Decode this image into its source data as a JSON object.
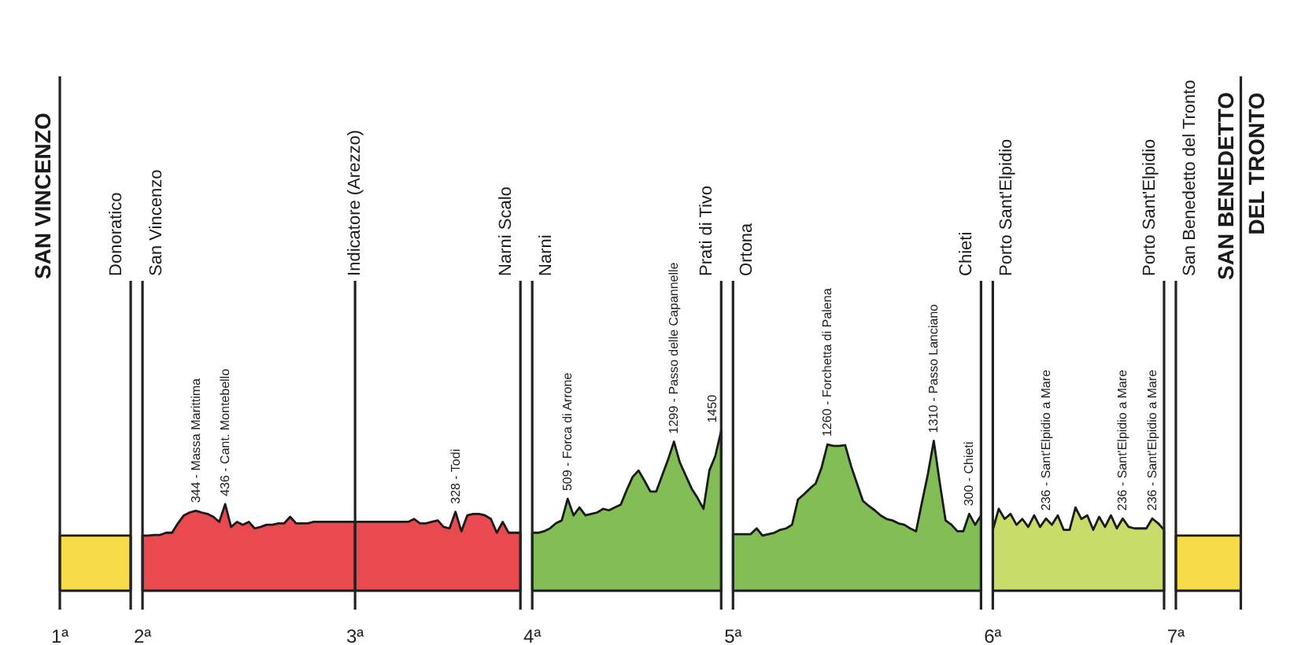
{
  "chart_data": {
    "type": "area",
    "categories": [
      "1ª",
      null,
      null,
      null,
      null,
      null,
      null,
      null,
      null,
      null,
      null,
      null,
      null,
      null,
      "2ª",
      null,
      null,
      null,
      null,
      null,
      null,
      null,
      null,
      null,
      null,
      null,
      null,
      null,
      null,
      null,
      null,
      null,
      null,
      null,
      null,
      null,
      null,
      null,
      null,
      null,
      null,
      null,
      null,
      null,
      null,
      null,
      null,
      null,
      null,
      null,
      "3ª",
      null,
      null,
      null,
      null,
      null,
      null,
      null,
      null,
      null,
      null,
      null,
      null,
      null,
      null,
      null,
      null,
      null,
      null,
      null,
      null,
      null,
      null,
      null,
      null,
      null,
      null,
      null,
      null,
      null,
      "4ª",
      null,
      null,
      null,
      null,
      null,
      null,
      null,
      null,
      null,
      null,
      null,
      null,
      null,
      null,
      null,
      null,
      null,
      null,
      null,
      null,
      null,
      null,
      null,
      null,
      null,
      null,
      null,
      null,
      null,
      null,
      null,
      null,
      null,
      "5ª",
      null,
      null,
      null,
      null,
      null,
      null,
      null,
      null,
      null,
      null,
      null,
      null,
      null,
      null,
      null,
      null,
      null,
      null,
      null,
      null,
      null,
      null,
      null,
      null,
      null,
      null,
      null,
      null,
      null,
      null,
      null,
      null,
      null,
      null,
      null,
      null,
      null,
      null,
      null,
      null,
      null,
      null,
      null,
      "6ª",
      null,
      null,
      null,
      null,
      null,
      null,
      null,
      null,
      null,
      null,
      null,
      null,
      null,
      null,
      null,
      null,
      null,
      null,
      null,
      null,
      null,
      null,
      null,
      null,
      null,
      null,
      null,
      null,
      null,
      null,
      "7ª",
      null,
      null,
      null,
      null,
      null,
      null,
      null,
      null,
      null,
      null,
      null
    ],
    "series": [
      {
        "color": "#f5dc48",
        "values": [
          0,
          0,
          0,
          0,
          0,
          0,
          0,
          0,
          0,
          0,
          0,
          0,
          0,
          null,
          null,
          null,
          null,
          null,
          null,
          null,
          null,
          null,
          null,
          null,
          null,
          null,
          null,
          null,
          null,
          null,
          null,
          null,
          null,
          null,
          null,
          null,
          null,
          null,
          null,
          null,
          null,
          null,
          null,
          null,
          null,
          null,
          null,
          null,
          null,
          null,
          null,
          null,
          null,
          null,
          null,
          null,
          null,
          null,
          null,
          null,
          null,
          null,
          null,
          null,
          null,
          null,
          null,
          null,
          null,
          null,
          null,
          null,
          null,
          null,
          null,
          null,
          null,
          null,
          null,
          null,
          null,
          null,
          null,
          null,
          null,
          null,
          null,
          null,
          null,
          null,
          null,
          null,
          null,
          null,
          null,
          null,
          null,
          null,
          null,
          null,
          null,
          null,
          null,
          null,
          null,
          null,
          null,
          null,
          null,
          null,
          null,
          null,
          null,
          null,
          null,
          null,
          null,
          null,
          null,
          null,
          null,
          null,
          null,
          null,
          null,
          null,
          null,
          null,
          null,
          null,
          null,
          null,
          null,
          null,
          null,
          null,
          null,
          null,
          null,
          null,
          null,
          null,
          null,
          null,
          null,
          null,
          null,
          null,
          null,
          null,
          null,
          null,
          null,
          null,
          null,
          null,
          null,
          null,
          null,
          null,
          null,
          null,
          null,
          null,
          null,
          null,
          null,
          null,
          null,
          null,
          null,
          null,
          null,
          null,
          null,
          null,
          null,
          null,
          null,
          null,
          null,
          null,
          null,
          null,
          null,
          null,
          null,
          null,
          null,
          0,
          0,
          0,
          0,
          0,
          0,
          0,
          0,
          0,
          0,
          0,
          0
        ]
      },
      {
        "color": "#e84a4f",
        "values": [
          null,
          null,
          null,
          null,
          null,
          null,
          null,
          null,
          null,
          null,
          null,
          null,
          null,
          null,
          0,
          0,
          10,
          10,
          40,
          40,
          170,
          280,
          320,
          344,
          320,
          300,
          260,
          190,
          436,
          120,
          190,
          150,
          190,
          100,
          120,
          150,
          150,
          170,
          170,
          260,
          170,
          170,
          170,
          190,
          190,
          190,
          190,
          190,
          190,
          190,
          190,
          null,
          null,
          null,
          null,
          null,
          null,
          null,
          null,
          null,
          null,
          null,
          null,
          null,
          null,
          null,
          null,
          null,
          null,
          null,
          null,
          null,
          null,
          null,
          null,
          null,
          null,
          null,
          null,
          null,
          null,
          null,
          null,
          null,
          null,
          null,
          null,
          null,
          null,
          null,
          null,
          null,
          null,
          null,
          null,
          null,
          null,
          null,
          null,
          null,
          null,
          null,
          null,
          null,
          null,
          null,
          null,
          null,
          null,
          null,
          null,
          null,
          null,
          null,
          null,
          null,
          null,
          null,
          null,
          null,
          null,
          null,
          null,
          null,
          null,
          null,
          null,
          null,
          null,
          null,
          null,
          null,
          null,
          null,
          null,
          null,
          null,
          null,
          null,
          null,
          null,
          null,
          null,
          null,
          null,
          null,
          null,
          null,
          null,
          null,
          null,
          null,
          null,
          null,
          null,
          null,
          null,
          null,
          null,
          null,
          null,
          null,
          null,
          null,
          null,
          null,
          null,
          null,
          null,
          null,
          null,
          null,
          null,
          null,
          null,
          null,
          null,
          null,
          null,
          null,
          null,
          null,
          null,
          null,
          null,
          null,
          null,
          null,
          null,
          null,
          null,
          null,
          null,
          null,
          null,
          null,
          null,
          null,
          null,
          null,
          null
        ],
        "value_labels": [
          null,
          null,
          null,
          null,
          null,
          null,
          null,
          null,
          null,
          null,
          null,
          null,
          null,
          null,
          null,
          null,
          null,
          null,
          null,
          null,
          null,
          null,
          null,
          "344 - Massa Marittima",
          null,
          null,
          null,
          null,
          "436 - Cant. Montebello",
          null,
          null,
          null,
          null,
          null,
          null,
          null,
          null,
          null,
          null,
          null,
          null,
          null,
          null,
          null,
          null,
          null,
          null,
          null,
          null,
          null,
          null,
          null,
          null,
          null,
          null,
          null,
          null,
          null,
          null,
          null,
          null,
          null,
          null,
          null,
          null,
          null,
          null,
          null,
          null,
          null,
          null,
          null,
          null,
          null,
          null,
          null,
          null,
          null,
          null,
          null,
          null,
          null,
          null,
          null,
          null,
          null,
          null,
          null,
          null,
          null,
          null,
          null,
          null,
          null,
          null,
          null,
          null,
          null,
          null,
          null,
          null,
          null,
          null,
          null,
          null,
          null,
          null,
          null,
          null,
          null,
          null,
          null,
          null,
          null,
          null,
          null,
          null,
          null,
          null,
          null,
          null,
          null,
          null,
          null,
          null,
          null,
          null,
          null,
          null,
          null,
          null,
          null,
          null,
          null,
          null,
          null,
          null,
          null,
          null,
          null,
          null,
          null,
          null,
          null,
          null,
          null,
          null,
          null,
          null,
          null,
          null,
          null,
          null,
          null,
          null,
          null,
          null,
          null,
          null,
          null,
          null,
          null,
          null,
          null,
          null,
          null,
          null,
          null,
          null,
          null,
          null,
          null,
          null,
          null,
          null,
          null,
          null,
          null,
          null,
          null,
          null,
          null,
          null,
          null,
          null,
          null,
          null,
          null,
          null,
          null,
          null,
          null,
          null,
          null,
          null,
          null,
          null,
          null,
          null,
          null,
          null
        ]
      },
      {
        "color": "#e84a4f",
        "values": [
          null,
          null,
          null,
          null,
          null,
          null,
          null,
          null,
          null,
          null,
          null,
          null,
          null,
          null,
          null,
          null,
          null,
          null,
          null,
          null,
          null,
          null,
          null,
          null,
          null,
          null,
          null,
          null,
          null,
          null,
          null,
          null,
          null,
          null,
          null,
          null,
          null,
          null,
          null,
          null,
          null,
          null,
          null,
          null,
          null,
          null,
          null,
          null,
          null,
          null,
          190,
          190,
          190,
          190,
          190,
          190,
          190,
          190,
          190,
          190,
          230,
          170,
          170,
          190,
          210,
          120,
          100,
          328,
          60,
          280,
          300,
          300,
          280,
          230,
          40,
          190,
          40,
          40,
          40,
          null,
          null,
          null,
          null,
          null,
          null,
          null,
          null,
          null,
          null,
          null,
          null,
          null,
          null,
          null,
          null,
          null,
          null,
          null,
          null,
          null,
          null,
          null,
          null,
          null,
          null,
          null,
          null,
          null,
          null,
          null,
          null,
          null,
          null,
          null,
          null,
          null,
          null,
          null,
          null,
          null,
          null,
          null,
          null,
          null,
          null,
          null,
          null,
          null,
          null,
          null,
          null,
          null,
          null,
          null,
          null,
          null,
          null,
          null,
          null,
          null,
          null,
          null,
          null,
          null,
          null,
          null,
          null,
          null,
          null,
          null,
          null,
          null,
          null,
          null,
          null,
          null,
          null,
          null,
          null,
          null,
          null,
          null,
          null,
          null,
          null,
          null,
          null,
          null,
          null,
          null,
          null,
          null,
          null,
          null,
          null,
          null,
          null,
          null,
          null,
          null,
          null,
          null,
          null,
          null,
          null,
          null,
          null,
          null,
          null,
          null,
          null,
          null,
          null,
          null,
          null,
          null,
          null,
          null,
          null,
          null,
          null
        ],
        "value_labels": [
          null,
          null,
          null,
          null,
          null,
          null,
          null,
          null,
          null,
          null,
          null,
          null,
          null,
          null,
          null,
          null,
          null,
          null,
          null,
          null,
          null,
          null,
          null,
          null,
          null,
          null,
          null,
          null,
          null,
          null,
          null,
          null,
          null,
          null,
          null,
          null,
          null,
          null,
          null,
          null,
          null,
          null,
          null,
          null,
          null,
          null,
          null,
          null,
          null,
          null,
          null,
          null,
          null,
          null,
          null,
          null,
          null,
          null,
          null,
          null,
          null,
          null,
          null,
          null,
          null,
          null,
          null,
          "328 - Todi",
          null,
          null,
          null,
          null,
          null,
          null,
          null,
          null,
          null,
          null,
          null,
          null,
          null,
          null,
          null,
          null,
          null,
          null,
          null,
          null,
          null,
          null,
          null,
          null,
          null,
          null,
          null,
          null,
          null,
          null,
          null,
          null,
          null,
          null,
          null,
          null,
          null,
          null,
          null,
          null,
          null,
          null,
          null,
          null,
          null,
          null,
          null,
          null,
          null,
          null,
          null,
          null,
          null,
          null,
          null,
          null,
          null,
          null,
          null,
          null,
          null,
          null,
          null,
          null,
          null,
          null,
          null,
          null,
          null,
          null,
          null,
          null,
          null,
          null,
          null,
          null,
          null,
          null,
          null,
          null,
          null,
          null,
          null,
          null,
          null,
          null,
          null,
          null,
          null,
          null,
          null,
          null,
          null,
          null,
          null,
          null,
          null,
          null,
          null,
          null,
          null,
          null,
          null,
          null,
          null,
          null,
          null,
          null,
          null,
          null,
          null,
          null,
          null,
          null,
          null,
          null,
          null,
          null,
          null,
          null,
          null,
          null,
          null,
          null,
          null,
          null,
          null,
          null,
          null,
          null,
          null,
          null,
          null
        ]
      },
      {
        "color": "#82be55",
        "values": [
          null,
          null,
          null,
          null,
          null,
          null,
          null,
          null,
          null,
          null,
          null,
          null,
          null,
          null,
          null,
          null,
          null,
          null,
          null,
          null,
          null,
          null,
          null,
          null,
          null,
          null,
          null,
          null,
          null,
          null,
          null,
          null,
          null,
          null,
          null,
          null,
          null,
          null,
          null,
          null,
          null,
          null,
          null,
          null,
          null,
          null,
          null,
          null,
          null,
          null,
          null,
          null,
          null,
          null,
          null,
          null,
          null,
          null,
          null,
          null,
          null,
          null,
          null,
          null,
          null,
          null,
          null,
          null,
          null,
          null,
          null,
          null,
          null,
          null,
          null,
          null,
          null,
          null,
          null,
          null,
          40,
          40,
          60,
          100,
          170,
          210,
          509,
          280,
          390,
          280,
          300,
          320,
          370,
          350,
          390,
          430,
          630,
          810,
          900,
          760,
          610,
          610,
          830,
          1050,
          1299,
          1010,
          830,
          650,
          520,
          370,
          900,
          1100,
          1450,
          null,
          20,
          20,
          20,
          20,
          100,
          0,
          20,
          40,
          80,
          100,
          150,
          500,
          570,
          650,
          720,
          940,
          1260,
          1240,
          1240,
          1250,
          960,
          720,
          480,
          410,
          350,
          280,
          230,
          210,
          170,
          150,
          100,
          60,
          460,
          850,
          1310,
          740,
          210,
          150,
          60,
          60,
          300,
          150,
          280,
          null,
          null,
          null,
          null,
          null,
          null,
          null,
          null,
          null,
          null,
          null,
          null,
          null,
          null,
          null,
          null,
          null,
          null,
          null,
          null,
          null,
          null,
          null,
          null,
          null,
          null,
          null,
          null,
          null,
          null,
          null,
          null,
          null,
          null,
          null,
          null,
          null,
          null,
          null,
          null,
          null,
          null,
          null,
          null
        ],
        "value_labels": [
          null,
          null,
          null,
          null,
          null,
          null,
          null,
          null,
          null,
          null,
          null,
          null,
          null,
          null,
          null,
          null,
          null,
          null,
          null,
          null,
          null,
          null,
          null,
          null,
          null,
          null,
          null,
          null,
          null,
          null,
          null,
          null,
          null,
          null,
          null,
          null,
          null,
          null,
          null,
          null,
          null,
          null,
          null,
          null,
          null,
          null,
          null,
          null,
          null,
          null,
          null,
          null,
          null,
          null,
          null,
          null,
          null,
          null,
          null,
          null,
          null,
          null,
          null,
          null,
          null,
          null,
          null,
          null,
          null,
          null,
          null,
          null,
          null,
          null,
          null,
          null,
          null,
          null,
          null,
          null,
          null,
          null,
          null,
          null,
          null,
          null,
          "509 - Forca di Arrone",
          null,
          null,
          null,
          null,
          null,
          null,
          null,
          null,
          null,
          null,
          null,
          null,
          null,
          null,
          null,
          null,
          null,
          "1299 - Passo delle Capannelle",
          null,
          null,
          null,
          null,
          null,
          null,
          null,
          "1450",
          null,
          null,
          null,
          null,
          null,
          null,
          null,
          null,
          null,
          null,
          null,
          null,
          null,
          null,
          null,
          null,
          null,
          "1260 - Forchetta di Palena",
          null,
          null,
          null,
          null,
          null,
          null,
          null,
          null,
          null,
          null,
          null,
          null,
          null,
          null,
          null,
          null,
          null,
          "1310 - Passo Lanciano",
          null,
          null,
          null,
          null,
          null,
          "300 - Chieti",
          null,
          null,
          null,
          null,
          null,
          null,
          null,
          null,
          null,
          null,
          null,
          null,
          null,
          null,
          null,
          null,
          null,
          null,
          null,
          null,
          null,
          null,
          null,
          null,
          null,
          null,
          null,
          null,
          null,
          null,
          null,
          null,
          null,
          null,
          null,
          null,
          null,
          null,
          null,
          null,
          null,
          null,
          null,
          null,
          null,
          null
        ]
      },
      {
        "color": "#c8dc6a",
        "values": [
          null,
          null,
          null,
          null,
          null,
          null,
          null,
          null,
          null,
          null,
          null,
          null,
          null,
          null,
          null,
          null,
          null,
          null,
          null,
          null,
          null,
          null,
          null,
          null,
          null,
          null,
          null,
          null,
          null,
          null,
          null,
          null,
          null,
          null,
          null,
          null,
          null,
          null,
          null,
          null,
          null,
          null,
          null,
          null,
          null,
          null,
          null,
          null,
          null,
          null,
          null,
          null,
          null,
          null,
          null,
          null,
          null,
          null,
          null,
          null,
          null,
          null,
          null,
          null,
          null,
          null,
          null,
          null,
          null,
          null,
          null,
          null,
          null,
          null,
          null,
          null,
          null,
          null,
          null,
          null,
          null,
          null,
          null,
          null,
          null,
          null,
          null,
          null,
          null,
          null,
          null,
          null,
          null,
          null,
          null,
          null,
          null,
          null,
          null,
          null,
          null,
          null,
          null,
          null,
          null,
          null,
          null,
          null,
          null,
          null,
          null,
          null,
          null,
          null,
          null,
          null,
          null,
          null,
          null,
          null,
          null,
          null,
          null,
          null,
          null,
          null,
          null,
          null,
          null,
          null,
          null,
          null,
          null,
          null,
          null,
          null,
          null,
          null,
          null,
          null,
          null,
          null,
          null,
          null,
          null,
          null,
          null,
          null,
          null,
          null,
          null,
          null,
          null,
          null,
          null,
          null,
          null,
          null,
          80,
          370,
          230,
          300,
          150,
          230,
          120,
          280,
          120,
          236,
          150,
          280,
          80,
          80,
          390,
          230,
          280,
          80,
          260,
          120,
          280,
          100,
          236,
          120,
          100,
          100,
          100,
          236,
          170,
          80,
          null,
          null,
          null,
          null,
          null,
          null,
          null,
          null,
          null,
          null,
          null,
          null,
          null
        ],
        "value_labels": [
          null,
          null,
          null,
          null,
          null,
          null,
          null,
          null,
          null,
          null,
          null,
          null,
          null,
          null,
          null,
          null,
          null,
          null,
          null,
          null,
          null,
          null,
          null,
          null,
          null,
          null,
          null,
          null,
          null,
          null,
          null,
          null,
          null,
          null,
          null,
          null,
          null,
          null,
          null,
          null,
          null,
          null,
          null,
          null,
          null,
          null,
          null,
          null,
          null,
          null,
          null,
          null,
          null,
          null,
          null,
          null,
          null,
          null,
          null,
          null,
          null,
          null,
          null,
          null,
          null,
          null,
          null,
          null,
          null,
          null,
          null,
          null,
          null,
          null,
          null,
          null,
          null,
          null,
          null,
          null,
          null,
          null,
          null,
          null,
          null,
          null,
          null,
          null,
          null,
          null,
          null,
          null,
          null,
          null,
          null,
          null,
          null,
          null,
          null,
          null,
          null,
          null,
          null,
          null,
          null,
          null,
          null,
          null,
          null,
          null,
          null,
          null,
          null,
          null,
          null,
          null,
          null,
          null,
          null,
          null,
          null,
          null,
          null,
          null,
          null,
          null,
          null,
          null,
          null,
          null,
          null,
          null,
          null,
          null,
          null,
          null,
          null,
          null,
          null,
          null,
          null,
          null,
          null,
          null,
          null,
          null,
          null,
          null,
          null,
          null,
          null,
          null,
          null,
          null,
          null,
          null,
          null,
          null,
          null,
          null,
          null,
          null,
          null,
          null,
          null,
          null,
          null,
          "236 - Sant'Elpidio a Mare",
          null,
          null,
          null,
          null,
          null,
          null,
          null,
          null,
          null,
          null,
          null,
          null,
          "236 - Sant'Elpidio a Mare",
          null,
          null,
          null,
          null,
          "236 - Sant'Elpidio a Mare",
          null,
          null,
          null,
          null,
          null,
          null,
          null,
          null,
          null,
          null,
          null,
          null,
          null,
          null,
          null
        ]
      }
    ],
    "annotations": [
      "SAN VINCENZO",
      "Donoratico",
      "San Vincenzo",
      "Indicatore (Arezzo)",
      "Narni Scalo",
      "Narni",
      "Prati di Tivo",
      "Ortona",
      "Chieti",
      "Porto Sant'Elpidio",
      "Porto Sant'Elpidio",
      "San Benedetto del Tronto",
      "SAN BENEDETTO\nDEL TRONTO"
    ]
  }
}
